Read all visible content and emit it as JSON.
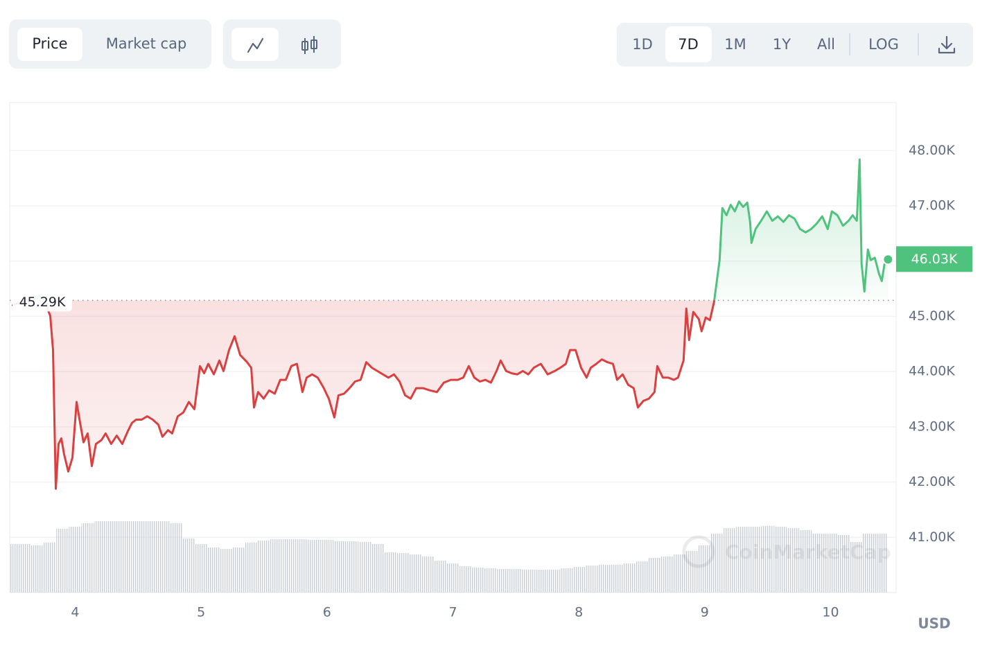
{
  "controls": {
    "metric": [
      "Price",
      "Market cap"
    ],
    "ranges": [
      "1D",
      "7D",
      "1M",
      "1Y",
      "All"
    ],
    "scale": "LOG"
  },
  "chart_data": {
    "type": "line",
    "x": [
      3.505,
      3.736,
      3.802,
      3.824,
      3.846,
      3.868,
      3.89,
      3.912,
      3.945,
      3.978,
      4.011,
      4.039,
      4.066,
      4.099,
      4.132,
      4.165,
      4.209,
      4.242,
      4.286,
      4.33,
      4.374,
      4.418,
      4.451,
      4.484,
      4.528,
      4.572,
      4.616,
      4.66,
      4.693,
      4.737,
      4.77,
      4.815,
      4.859,
      4.903,
      4.947,
      4.991,
      5.024,
      5.057,
      5.101,
      5.145,
      5.178,
      5.222,
      5.266,
      5.31,
      5.365,
      5.398,
      5.42,
      5.453,
      5.497,
      5.541,
      5.585,
      5.629,
      5.673,
      5.717,
      5.761,
      5.805,
      5.838,
      5.882,
      5.926,
      5.97,
      6.014,
      6.058,
      6.091,
      6.135,
      6.179,
      6.223,
      6.267,
      6.312,
      6.356,
      6.4,
      6.444,
      6.488,
      6.532,
      6.576,
      6.62,
      6.664,
      6.708,
      6.763,
      6.818,
      6.873,
      6.928,
      6.983,
      7.038,
      7.082,
      7.126,
      7.17,
      7.214,
      7.258,
      7.302,
      7.346,
      7.379,
      7.423,
      7.467,
      7.511,
      7.555,
      7.599,
      7.643,
      7.698,
      7.753,
      7.808,
      7.853,
      7.897,
      7.93,
      7.974,
      8.018,
      8.062,
      8.095,
      8.139,
      8.183,
      8.227,
      8.271,
      8.304,
      8.348,
      8.392,
      8.436,
      8.469,
      8.513,
      8.557,
      8.601,
      8.623,
      8.667,
      8.711,
      8.755,
      8.788,
      8.832,
      8.854,
      8.876,
      8.909,
      8.953,
      8.975,
      9.008,
      9.041,
      9.074,
      9.096,
      9.118,
      9.14,
      9.173,
      9.206,
      9.239,
      9.272,
      9.305,
      9.338,
      9.36,
      9.371,
      9.404,
      9.448,
      9.493,
      9.537,
      9.581,
      9.625,
      9.669,
      9.713,
      9.757,
      9.801,
      9.845,
      9.889,
      9.933,
      9.977,
      10.01,
      10.054,
      10.098,
      10.142,
      10.175,
      10.208,
      10.23,
      10.246,
      10.268,
      10.296,
      10.318,
      10.351,
      10.384,
      10.406,
      10.428,
      10.456
    ],
    "values": [
      45200,
      45390,
      45010,
      44390,
      41880,
      42690,
      42790,
      42500,
      42190,
      42440,
      43450,
      43070,
      42720,
      42880,
      42290,
      42690,
      42760,
      42880,
      42690,
      42840,
      42690,
      42920,
      43070,
      43130,
      43130,
      43190,
      43130,
      43040,
      42820,
      42940,
      42880,
      43190,
      43260,
      43450,
      43320,
      44100,
      43970,
      44140,
      43950,
      44200,
      44010,
      44390,
      44640,
      44300,
      44170,
      44070,
      43350,
      43630,
      43510,
      43660,
      43600,
      43850,
      43850,
      44100,
      44140,
      43630,
      43890,
      43950,
      43890,
      43720,
      43510,
      43170,
      43570,
      43600,
      43700,
      43820,
      43850,
      44170,
      44070,
      44010,
      43950,
      43890,
      43950,
      43820,
      43570,
      43510,
      43700,
      43700,
      43660,
      43630,
      43800,
      43850,
      43850,
      43890,
      44100,
      43890,
      43820,
      43850,
      43800,
      44010,
      44200,
      44010,
      43970,
      43950,
      44010,
      43950,
      44070,
      44140,
      43950,
      44010,
      44070,
      44140,
      44390,
      44390,
      44070,
      43890,
      44070,
      44140,
      44220,
      44170,
      44140,
      43850,
      43950,
      43760,
      43700,
      43350,
      43470,
      43510,
      43630,
      44100,
      43890,
      43890,
      43850,
      43890,
      44200,
      45140,
      44570,
      45080,
      44950,
      44730,
      44980,
      44930,
      45260,
      45640,
      46020,
      46960,
      46830,
      47020,
      46900,
      47080,
      46980,
      47060,
      46710,
      46330,
      46580,
      46730,
      46900,
      46730,
      46810,
      46710,
      46830,
      46770,
      46580,
      46520,
      46580,
      46680,
      46810,
      46580,
      46900,
      46830,
      46640,
      46730,
      46830,
      46730,
      47840,
      45950,
      45450,
      46210,
      46020,
      46060,
      45770,
      45640,
      45950,
      46030
    ],
    "color_above": "#4fc27d",
    "color_below": "#d9403f",
    "reference": {
      "value": 45290,
      "label": "45.29K"
    },
    "last_label": "46.03K",
    "volume": {
      "x": [
        3.5,
        3.6,
        3.7,
        3.8,
        3.9,
        4.0,
        4.1,
        4.2,
        4.3,
        4.4,
        4.5,
        4.6,
        4.7,
        4.8,
        4.9,
        5.0,
        5.1,
        5.2,
        5.3,
        5.4,
        5.5,
        5.6,
        5.7,
        5.8,
        5.9,
        6.0,
        6.1,
        6.2,
        6.3,
        6.4,
        6.5,
        6.6,
        6.7,
        6.8,
        6.9,
        7.0,
        7.1,
        7.2,
        7.3,
        7.4,
        7.5,
        7.6,
        7.7,
        7.8,
        7.9,
        8.0,
        8.1,
        8.2,
        8.3,
        8.4,
        8.5,
        8.6,
        8.7,
        8.8,
        8.9,
        9.0,
        9.1,
        9.2,
        9.3,
        9.4,
        9.5,
        9.6,
        9.7,
        9.8,
        9.9,
        10.0,
        10.1,
        10.2,
        10.3,
        10.4
      ],
      "values": [
        70,
        70,
        68,
        72,
        92,
        95,
        100,
        103,
        103,
        103,
        103,
        103,
        103,
        100,
        78,
        70,
        65,
        63,
        65,
        72,
        75,
        77,
        77,
        77,
        76,
        76,
        74,
        74,
        73,
        70,
        58,
        57,
        55,
        52,
        46,
        42,
        38,
        36,
        35,
        34,
        34,
        33,
        33,
        33,
        35,
        37,
        39,
        40,
        40,
        42,
        45,
        50,
        52,
        55,
        60,
        68,
        85,
        93,
        95,
        95,
        96,
        95,
        93,
        90,
        85,
        85,
        83,
        73,
        85,
        85
      ],
      "color": "#c9ced6"
    },
    "xlim": [
      3.48,
      10.52
    ],
    "xticks": [
      4,
      5,
      6,
      7,
      8,
      9,
      10
    ],
    "ylim": [
      40000,
      48870
    ],
    "yticks": [
      {
        "value": 41000,
        "label": "41.00K"
      },
      {
        "value": 42000,
        "label": "42.00K"
      },
      {
        "value": 43000,
        "label": "43.00K"
      },
      {
        "value": 44000,
        "label": "44.00K"
      },
      {
        "value": 45000,
        "label": "45.00K"
      },
      {
        "value": 46000,
        "label": "46.00K"
      },
      {
        "value": 47000,
        "label": "47.00K"
      },
      {
        "value": 48000,
        "label": "48.00K"
      }
    ],
    "y_unit": "USD",
    "grid": true,
    "watermark": "CoinMarketCap"
  }
}
